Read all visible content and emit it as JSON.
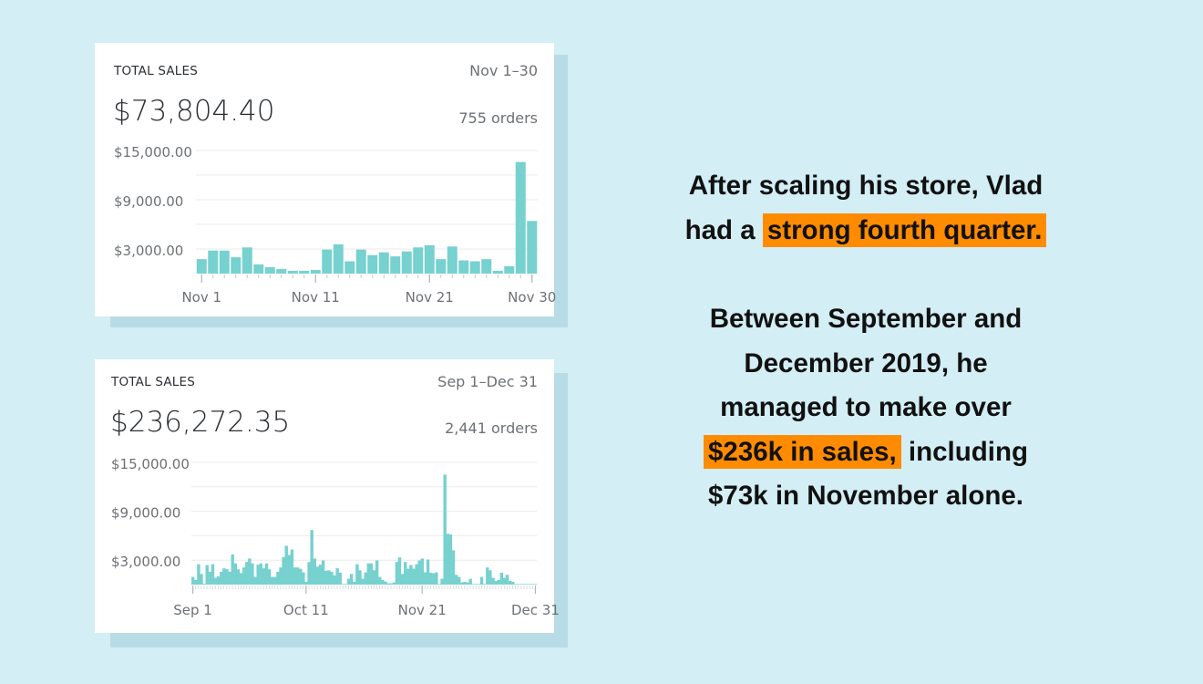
{
  "colors": {
    "background": "#d3eef5",
    "bar": "#76d1cf",
    "highlight": "#ff8c00",
    "grid": "#ebebeb"
  },
  "cards": [
    {
      "title": "TOTAL SALES",
      "date_range": "Nov 1–30",
      "total": "$73,804.40",
      "orders": "755 orders",
      "chart_data": {
        "type": "bar",
        "ylim": [
          0,
          15000
        ],
        "y_ticks": [
          "$15,000.00",
          "$9,000.00",
          "$3,000.00"
        ],
        "y_tick_values": [
          15000,
          9000,
          3000
        ],
        "gridlines": [
          15000,
          12000,
          9000,
          6000,
          3000
        ],
        "x_tick_labels": [
          "Nov 1",
          "Nov 11",
          "Nov 21",
          "Nov 30"
        ],
        "x_tick_index": [
          0,
          10,
          20,
          29
        ],
        "values": [
          1760,
          2810,
          2810,
          1990,
          3190,
          1125,
          790,
          560,
          340,
          340,
          450,
          2925,
          3560,
          1500,
          2925,
          2250,
          2590,
          2100,
          2700,
          3190,
          3450,
          1760,
          3300,
          1610,
          1500,
          1760,
          340,
          900,
          13600,
          6410
        ]
      }
    },
    {
      "title": "TOTAL SALES",
      "date_range": "Sep 1–Dec 31",
      "total": "$236,272.35",
      "orders": "2,441 orders",
      "chart_data": {
        "type": "bar",
        "ylim": [
          0,
          15000
        ],
        "y_ticks": [
          "$15,000.00",
          "$9,000.00",
          "$3,000.00"
        ],
        "y_tick_values": [
          15000,
          9000,
          3000
        ],
        "gridlines": [
          15000,
          12000,
          9000,
          6000,
          3000
        ],
        "x_tick_labels": [
          "Sep 1",
          "Oct 11",
          "Nov 21",
          "Dec 31"
        ],
        "x_tick_index": [
          0,
          40,
          81,
          121
        ],
        "values": [
          940,
          560,
          2500,
          1300,
          100,
          2400,
          1575,
          2500,
          825,
          1000,
          1575,
          2000,
          1875,
          1575,
          3700,
          2600,
          1875,
          1400,
          2100,
          2775,
          3200,
          2600,
          940,
          2440,
          2600,
          2000,
          2600,
          1875,
          940,
          940,
          1575,
          2100,
          3375,
          4760,
          3640,
          4300,
          2100,
          2100,
          1950,
          1500,
          340,
          2775,
          6700,
          3200,
          2200,
          2440,
          2960,
          1690,
          1760,
          1575,
          1125,
          2000,
          1460,
          75,
          75,
          710,
          1300,
          340,
          2500,
          1760,
          710,
          1500,
          2600,
          2600,
          1760,
          2960,
          940,
          560,
          375,
          150,
          150,
          260,
          2775,
          3340,
          1300,
          2775,
          1950,
          2400,
          1950,
          2500,
          2960,
          3200,
          1500,
          3075,
          1460,
          1400,
          1500,
          75,
          710,
          13500,
          6225,
          6150,
          4200,
          1200,
          940,
          260,
          340,
          260,
          710,
          75,
          75,
          75,
          940,
          75,
          2100,
          1760,
          825,
          450,
          560,
          1460,
          825,
          1200,
          450,
          340,
          75,
          75,
          75,
          75,
          75,
          75,
          75,
          75
        ]
      }
    }
  ],
  "copy": {
    "p1_line1": "After scaling his store, Vlad",
    "p1_line2_pre": "had a ",
    "p1_line2_hl": "strong fourth quarter.",
    "p2_line1": "Between September and",
    "p2_line2": "December 2019, he",
    "p2_line3": "managed to make over",
    "p2_line4_hl": "$236k in sales,",
    "p2_line4_post": " including",
    "p2_line5": "$73k in November alone."
  }
}
